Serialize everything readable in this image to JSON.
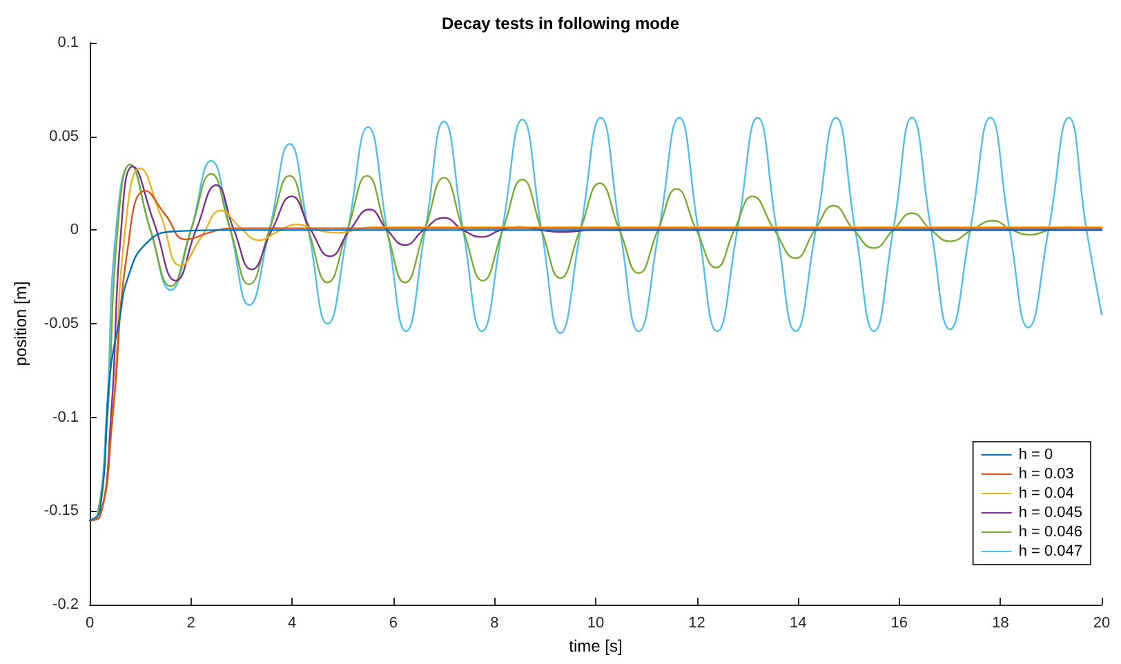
{
  "chart_data": {
    "type": "line",
    "title": "Decay tests in following mode",
    "xlabel": "time [s]",
    "ylabel": "position [m]",
    "xlim": [
      0,
      20
    ],
    "xticks": [
      0,
      2,
      4,
      6,
      8,
      10,
      12,
      14,
      16,
      18,
      20
    ],
    "ylim": [
      -0.2,
      0.1
    ],
    "yticks": [
      -0.2,
      -0.15,
      -0.1,
      -0.05,
      0,
      0.05,
      0.1
    ],
    "grid": false,
    "legend": "bottom right",
    "marker": "none",
    "line_style": "solid",
    "series": [
      {
        "name": "h = 0",
        "color": "#0072bd",
        "x": [
          0,
          0.2,
          0.4,
          0.58,
          0.76,
          1.12,
          1.66,
          2.5,
          20
        ],
        "values": [
          -0.155,
          -0.15,
          -0.077,
          -0.049,
          -0.025,
          -0.007,
          -0.0007,
          0,
          0
        ]
      },
      {
        "name": "h = 0.03",
        "color": "#d95319",
        "x": [
          0,
          0.2,
          0.45,
          0.75,
          1.1,
          1.5,
          1.9,
          2.4,
          2.8,
          20
        ],
        "values": [
          -0.155,
          -0.153,
          -0.1,
          -0.01,
          0.021,
          0.008,
          -0.005,
          -0.001,
          0.001,
          0.001
        ]
      },
      {
        "name": "h = 0.04",
        "color": "#edb120",
        "x": [
          0,
          0.2,
          0.45,
          0.7,
          1.0,
          1.4,
          1.8,
          2.2,
          2.6,
          2.95,
          3.35,
          3.7,
          4.1,
          4.5,
          4.9,
          5.25,
          5.6,
          7,
          20
        ],
        "values": [
          -0.155,
          -0.153,
          -0.1,
          0,
          0.033,
          0.008,
          -0.019,
          -0.004,
          0.0105,
          0.002,
          -0.0054,
          -0.001,
          0.003,
          0,
          -0.0015,
          0,
          0.0015,
          0.0015,
          0.0015
        ]
      },
      {
        "name": "h = 0.045",
        "color": "#7e2f8e",
        "x": [
          0,
          0.2,
          0.42,
          0.62,
          0.85,
          1.27,
          1.7,
          2.1,
          2.5,
          2.85,
          3.2,
          3.6,
          3.99,
          4.37,
          4.75,
          5.14,
          5.53,
          5.88,
          6.23,
          6.6,
          7.0,
          7.38,
          7.75,
          8.12,
          8.5,
          8.9,
          9.3,
          10,
          20
        ],
        "values": [
          -0.155,
          -0.153,
          -0.1,
          0,
          0.034,
          0.004,
          -0.027,
          0,
          0.024,
          0,
          -0.021,
          0,
          0.018,
          0,
          -0.014,
          0,
          0.011,
          0,
          -0.008,
          0,
          0.0066,
          0,
          -0.0037,
          0,
          0.0017,
          0,
          -0.001,
          0,
          0
        ]
      },
      {
        "name": "h = 0.046",
        "color": "#77ac30",
        "x": [
          0,
          0.15,
          0.35,
          0.55,
          0.8,
          1.2,
          1.6,
          2.0,
          2.4,
          2.78,
          3.15,
          3.55,
          3.95,
          4.32,
          4.7,
          5.09,
          5.48,
          5.86,
          6.23,
          6.62,
          7.0,
          7.38,
          7.77,
          8.16,
          8.55,
          8.93,
          9.3,
          9.69,
          10.08,
          10.47,
          10.85,
          11.23,
          11.6,
          11.99,
          12.38,
          12.74,
          13.1,
          13.53,
          13.95,
          14.33,
          14.7,
          15.1,
          15.5,
          15.88,
          16.25,
          16.63,
          17.0,
          17.43,
          17.85,
          18.23,
          18.6,
          18.95,
          19.3,
          20
        ],
        "values": [
          -0.155,
          -0.153,
          -0.1,
          0,
          0.035,
          0,
          -0.03,
          0,
          0.03,
          0,
          -0.029,
          0,
          0.029,
          0,
          -0.028,
          0,
          0.029,
          0,
          -0.028,
          0,
          0.028,
          0,
          -0.027,
          0,
          0.027,
          0,
          -0.0256,
          0,
          0.025,
          0,
          -0.023,
          0,
          0.022,
          0,
          -0.02,
          0,
          0.018,
          0,
          -0.015,
          0,
          0.013,
          0,
          -0.0096,
          0,
          0.009,
          0,
          -0.006,
          0,
          0.005,
          0,
          -0.0025,
          0,
          0.0017,
          0.001
        ]
      },
      {
        "name": "h = 0.047",
        "color": "#4dbeee",
        "x": [
          0,
          0.15,
          0.33,
          0.52,
          0.8,
          1.2,
          1.6,
          2.0,
          2.4,
          2.78,
          3.15,
          3.55,
          3.95,
          4.32,
          4.7,
          5.1,
          5.5,
          5.88,
          6.25,
          6.63,
          7.0,
          7.38,
          7.75,
          8.15,
          8.55,
          8.93,
          9.3,
          9.7,
          10.1,
          10.48,
          10.85,
          11.25,
          11.65,
          12.03,
          12.4,
          12.8,
          13.2,
          13.58,
          13.95,
          14.35,
          14.75,
          15.13,
          15.5,
          15.88,
          16.25,
          16.63,
          17.0,
          17.4,
          17.8,
          18.18,
          18.55,
          18.95,
          19.35,
          19.7,
          20
        ],
        "values": [
          -0.155,
          -0.153,
          -0.1,
          0,
          0.035,
          0,
          -0.032,
          0,
          0.037,
          0,
          -0.04,
          0,
          0.046,
          0,
          -0.05,
          0,
          0.055,
          0,
          -0.054,
          0,
          0.058,
          0,
          -0.054,
          0,
          0.059,
          0,
          -0.055,
          0,
          0.06,
          0,
          -0.054,
          0,
          0.06,
          0,
          -0.054,
          0,
          0.06,
          0,
          -0.054,
          0,
          0.06,
          0,
          -0.054,
          0,
          0.06,
          0,
          -0.053,
          0,
          0.06,
          0,
          -0.052,
          0,
          0.06,
          0,
          -0.045
        ]
      }
    ]
  }
}
